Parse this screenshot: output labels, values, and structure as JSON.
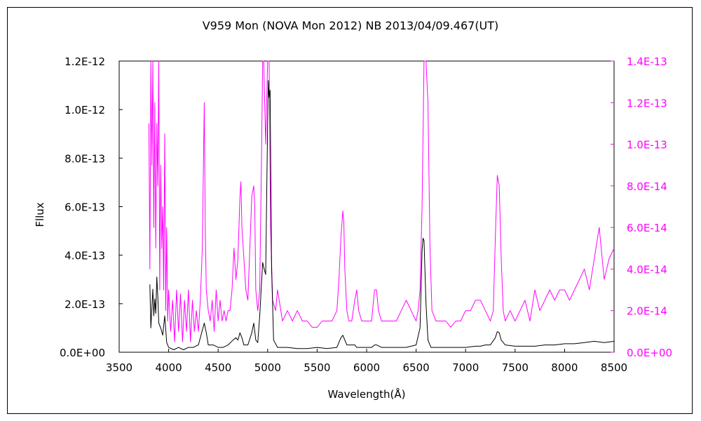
{
  "chart_data": {
    "type": "line",
    "title": "V959 Mon (NOVA Mon 2012)    NB    2013/04/09.467(UT)",
    "xlabel": "Wavelength(Å)",
    "ylabel": "Fllux",
    "xlim": [
      3500,
      8500
    ],
    "ylim_left": [
      0,
      1.2e-12
    ],
    "ylim_right": [
      0,
      1.4e-13
    ],
    "x_ticks": [
      "3500",
      "4000",
      "4500",
      "5000",
      "5500",
      "6000",
      "6500",
      "7000",
      "7500",
      "8000",
      "8500"
    ],
    "y_ticks_left": [
      "0.0E+00",
      "2.0E-13",
      "4.0E-13",
      "6.0E-13",
      "8.0E-13",
      "1.0E-12",
      "1.2E-12"
    ],
    "y_ticks_right": [
      "0.0E+00",
      "2.0E-14",
      "4.0E-14",
      "6.0E-14",
      "8.0E-14",
      "1.0E-13",
      "1.2E-13",
      "1.4E-13"
    ],
    "grid": false,
    "colors": {
      "series_black": "#000000",
      "series_magenta": "#ff00ff",
      "right_axis": "#ff00ff"
    },
    "series": [
      {
        "axis": "left",
        "color": "#000000",
        "x": [
          3810,
          3820,
          3830,
          3840,
          3850,
          3860,
          3870,
          3880,
          3890,
          3900,
          3920,
          3940,
          3960,
          3980,
          4000,
          4050,
          4100,
          4150,
          4200,
          4250,
          4300,
          4340,
          4360,
          4380,
          4400,
          4450,
          4500,
          4550,
          4600,
          4650,
          4680,
          4700,
          4720,
          4740,
          4760,
          4800,
          4840,
          4860,
          4880,
          4900,
          4920,
          4950,
          4960,
          4980,
          5000,
          5007,
          5015,
          5025,
          5040,
          5060,
          5100,
          5200,
          5300,
          5400,
          5500,
          5600,
          5700,
          5740,
          5760,
          5780,
          5800,
          5850,
          5880,
          5900,
          5950,
          6000,
          6050,
          6080,
          6100,
          6150,
          6200,
          6300,
          6400,
          6500,
          6540,
          6560,
          6570,
          6580,
          6600,
          6620,
          6650,
          6700,
          6800,
          6900,
          7000,
          7100,
          7150,
          7200,
          7250,
          7300,
          7320,
          7340,
          7360,
          7400,
          7500,
          7600,
          7700,
          7800,
          7900,
          8000,
          8100,
          8200,
          8300,
          8400,
          8500
        ],
        "y": [
          2.8e-13,
          1e-13,
          1.8e-13,
          2.6e-13,
          1.5e-13,
          2.2e-13,
          1.6e-13,
          3.1e-13,
          2.3e-13,
          1.2e-13,
          1e-13,
          7e-14,
          1.5e-13,
          4e-14,
          2e-14,
          1e-14,
          2e-14,
          1e-14,
          2e-14,
          2e-14,
          3e-14,
          9e-14,
          1.2e-13,
          8e-14,
          3e-14,
          3e-14,
          2e-14,
          2e-14,
          3e-14,
          5e-14,
          6e-14,
          5e-14,
          8e-14,
          6e-14,
          3e-14,
          3e-14,
          8e-14,
          1.2e-13,
          5e-14,
          4e-14,
          1.5e-13,
          3.7e-13,
          3.5e-13,
          3.2e-13,
          9.5e-13,
          1.12e-12,
          1.05e-12,
          1.08e-12,
          3.5e-13,
          5e-14,
          2e-14,
          2e-14,
          1.5e-14,
          1.5e-14,
          2e-14,
          1.5e-14,
          2e-14,
          6e-14,
          7e-14,
          5e-14,
          3e-14,
          3e-14,
          3e-14,
          2e-14,
          2e-14,
          2e-14,
          2e-14,
          3e-14,
          3e-14,
          2e-14,
          2e-14,
          2e-14,
          2e-14,
          3e-14,
          1e-13,
          4.2e-13,
          4.7e-13,
          4.6e-13,
          2e-13,
          5e-14,
          2e-14,
          2e-14,
          2e-14,
          2e-14,
          2e-14,
          2.5e-14,
          2.5e-14,
          3e-14,
          3e-14,
          6e-14,
          8.5e-14,
          8e-14,
          5e-14,
          3e-14,
          2.5e-14,
          2.5e-14,
          2.5e-14,
          3e-14,
          3e-14,
          3.5e-14,
          3.5e-14,
          4e-14,
          4.5e-14,
          4e-14,
          4.5e-14
        ]
      },
      {
        "axis": "right",
        "color": "#ff00ff",
        "x": [
          3800,
          3810,
          3820,
          3830,
          3840,
          3850,
          3860,
          3870,
          3880,
          3890,
          3900,
          3910,
          3920,
          3930,
          3940,
          3950,
          3960,
          3970,
          3980,
          3990,
          4000,
          4020,
          4040,
          4060,
          4080,
          4100,
          4120,
          4140,
          4160,
          4180,
          4200,
          4220,
          4240,
          4260,
          4280,
          4300,
          4320,
          4340,
          4350,
          4360,
          4370,
          4380,
          4400,
          4420,
          4440,
          4460,
          4480,
          4500,
          4520,
          4540,
          4560,
          4580,
          4600,
          4620,
          4640,
          4660,
          4680,
          4700,
          4720,
          4730,
          4740,
          4760,
          4780,
          4800,
          4820,
          4840,
          4860,
          4870,
          4880,
          4900,
          4920,
          4940,
          4950,
          4960,
          4980,
          5000,
          5007,
          5015,
          5030,
          5050,
          5080,
          5100,
          5150,
          5200,
          5250,
          5300,
          5350,
          5400,
          5450,
          5500,
          5550,
          5600,
          5650,
          5700,
          5720,
          5740,
          5760,
          5770,
          5780,
          5800,
          5820,
          5850,
          5880,
          5900,
          5920,
          5950,
          6000,
          6050,
          6080,
          6100,
          6120,
          6150,
          6200,
          6250,
          6300,
          6350,
          6400,
          6450,
          6500,
          6520,
          6540,
          6560,
          6580,
          6600,
          6620,
          6640,
          6660,
          6700,
          6750,
          6800,
          6850,
          6900,
          6950,
          7000,
          7050,
          7100,
          7150,
          7200,
          7250,
          7280,
          7300,
          7320,
          7340,
          7360,
          7380,
          7400,
          7450,
          7500,
          7550,
          7600,
          7650,
          7700,
          7750,
          7800,
          7850,
          7900,
          7950,
          8000,
          8050,
          8100,
          8150,
          8200,
          8250,
          8300,
          8350,
          8400,
          8450,
          8500
        ],
        "y": [
          1.1e-13,
          4e-14,
          1.45e-13,
          9e-14,
          1.45e-13,
          6e-14,
          1.2e-13,
          5e-14,
          1.1e-13,
          8e-14,
          1.4e-13,
          3e-14,
          9e-14,
          5e-14,
          7e-14,
          3e-14,
          1.05e-13,
          2e-14,
          6e-14,
          1.5e-14,
          3e-14,
          1e-14,
          2.5e-14,
          5e-15,
          3e-14,
          1e-14,
          2.8e-14,
          5e-15,
          2.5e-14,
          1e-14,
          3e-14,
          5e-15,
          2.5e-14,
          1e-14,
          2e-14,
          1e-14,
          2.5e-14,
          5e-14,
          8.5e-14,
          1.2e-13,
          6e-14,
          3e-14,
          2e-14,
          1.5e-14,
          2.5e-14,
          1e-14,
          3e-14,
          1.5e-14,
          2.5e-14,
          1.5e-14,
          2e-14,
          1.5e-14,
          2e-14,
          2e-14,
          3e-14,
          5e-14,
          3.5e-14,
          4.5e-14,
          7.5e-14,
          8.2e-14,
          6e-14,
          4.5e-14,
          3e-14,
          2.5e-14,
          5e-14,
          7.5e-14,
          8e-14,
          7e-14,
          3e-14,
          2e-14,
          3e-14,
          1e-13,
          1.4e-13,
          1.4e-13,
          1e-13,
          1.4e-13,
          1.4e-13,
          1.4e-13,
          6e-14,
          2.5e-14,
          2e-14,
          3e-14,
          1.5e-14,
          2e-14,
          1.5e-14,
          2e-14,
          1.5e-14,
          1.5e-14,
          1.2e-14,
          1.2e-14,
          1.5e-14,
          1.5e-14,
          1.5e-14,
          2e-14,
          3.5e-14,
          5.5e-14,
          6.8e-14,
          6.2e-14,
          4e-14,
          2e-14,
          1.5e-14,
          1.5e-14,
          2.5e-14,
          3e-14,
          2e-14,
          1.5e-14,
          1.5e-14,
          1.5e-14,
          3e-14,
          3e-14,
          2e-14,
          1.5e-14,
          1.5e-14,
          1.5e-14,
          1.5e-14,
          2e-14,
          2.5e-14,
          2e-14,
          1.5e-14,
          2e-14,
          3e-14,
          7e-14,
          1.4e-13,
          1.4e-13,
          1.2e-13,
          5e-14,
          2e-14,
          1.5e-14,
          1.5e-14,
          1.5e-14,
          1.2e-14,
          1.5e-14,
          1.5e-14,
          2e-14,
          2e-14,
          2.5e-14,
          2.5e-14,
          2e-14,
          1.5e-14,
          2e-14,
          5.5e-14,
          8.5e-14,
          8e-14,
          4.5e-14,
          2e-14,
          1.5e-14,
          2e-14,
          1.5e-14,
          2e-14,
          2.5e-14,
          1.5e-14,
          3e-14,
          2e-14,
          2.5e-14,
          3e-14,
          2.5e-14,
          3e-14,
          3e-14,
          2.5e-14,
          3e-14,
          3.5e-14,
          4e-14,
          3e-14,
          4.5e-14,
          6e-14,
          3.5e-14,
          4.5e-14,
          5e-14
        ]
      }
    ]
  }
}
